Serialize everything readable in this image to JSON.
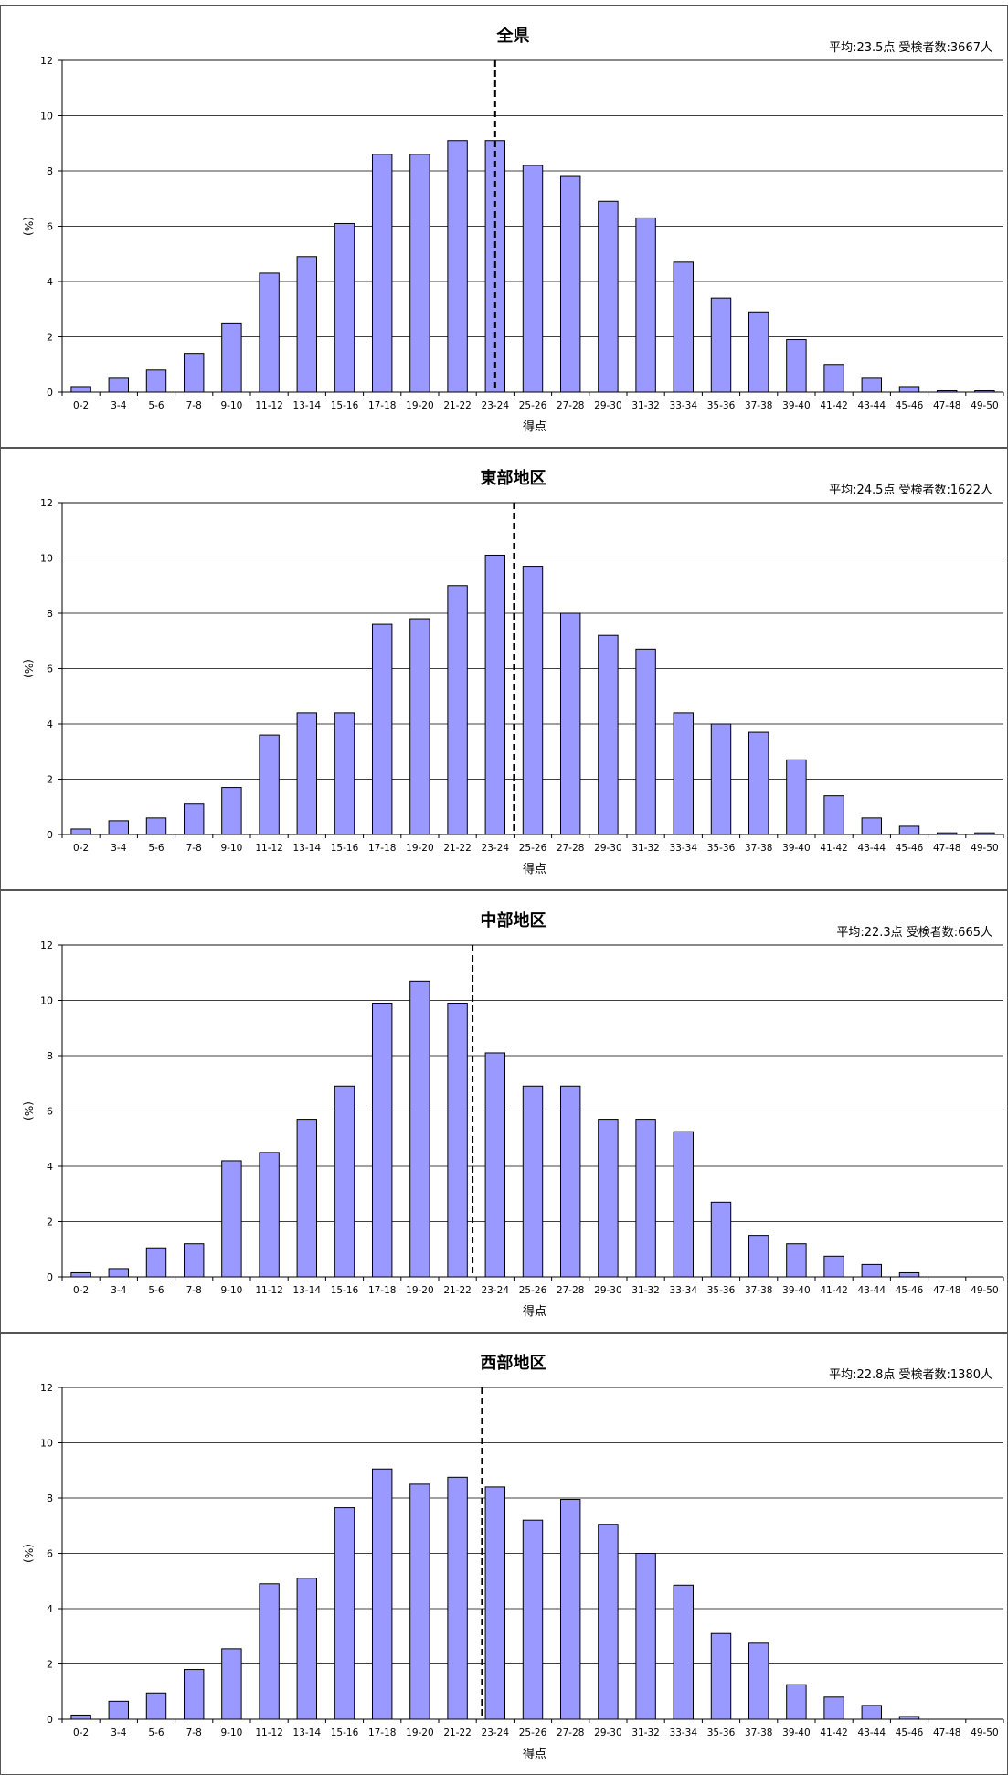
{
  "chart_data": [
    {
      "type": "bar",
      "title": "全県",
      "summary": "平均:23.5点 受検者数:3667人",
      "xlabel": "得点",
      "ylabel": "(%)",
      "ylim": [
        0,
        12
      ],
      "yticks": [
        0,
        2,
        4,
        6,
        8,
        10,
        12
      ],
      "grid": true,
      "categories": [
        "0-2",
        "3-4",
        "5-6",
        "7-8",
        "9-10",
        "11-12",
        "13-14",
        "15-16",
        "17-18",
        "19-20",
        "21-22",
        "23-24",
        "25-26",
        "27-28",
        "29-30",
        "31-32",
        "33-34",
        "35-36",
        "37-38",
        "39-40",
        "41-42",
        "43-44",
        "45-46",
        "47-48",
        "49-50"
      ],
      "values": [
        0.2,
        0.5,
        0.8,
        1.4,
        2.5,
        4.3,
        4.9,
        6.1,
        8.6,
        8.6,
        9.1,
        9.1,
        8.2,
        7.8,
        6.9,
        6.3,
        4.7,
        3.4,
        2.9,
        1.9,
        1.0,
        0.5,
        0.2,
        0.05,
        0.05
      ],
      "mean": 23.5,
      "bar_color": "#9999ff"
    },
    {
      "type": "bar",
      "title": "東部地区",
      "summary": "平均:24.5点 受検者数:1622人",
      "xlabel": "得点",
      "ylabel": "(%)",
      "ylim": [
        0,
        12
      ],
      "yticks": [
        0,
        2,
        4,
        6,
        8,
        10,
        12
      ],
      "grid": true,
      "categories": [
        "0-2",
        "3-4",
        "5-6",
        "7-8",
        "9-10",
        "11-12",
        "13-14",
        "15-16",
        "17-18",
        "19-20",
        "21-22",
        "23-24",
        "25-26",
        "27-28",
        "29-30",
        "31-32",
        "33-34",
        "35-36",
        "37-38",
        "39-40",
        "41-42",
        "43-44",
        "45-46",
        "47-48",
        "49-50"
      ],
      "values": [
        0.2,
        0.5,
        0.6,
        1.1,
        1.7,
        3.6,
        4.4,
        4.4,
        7.6,
        7.8,
        9.0,
        10.1,
        9.7,
        8.0,
        7.2,
        6.7,
        4.4,
        4.0,
        3.7,
        2.7,
        1.4,
        0.6,
        0.3,
        0.06,
        0.06
      ],
      "mean": 24.5,
      "bar_color": "#9999ff"
    },
    {
      "type": "bar",
      "title": "中部地区",
      "summary": "平均:22.3点 受検者数:665人",
      "xlabel": "得点",
      "ylabel": "(%)",
      "ylim": [
        0,
        12
      ],
      "yticks": [
        0,
        2,
        4,
        6,
        8,
        10,
        12
      ],
      "grid": true,
      "categories": [
        "0-2",
        "3-4",
        "5-6",
        "7-8",
        "9-10",
        "11-12",
        "13-14",
        "15-16",
        "17-18",
        "19-20",
        "21-22",
        "23-24",
        "25-26",
        "27-28",
        "29-30",
        "31-32",
        "33-34",
        "35-36",
        "37-38",
        "39-40",
        "41-42",
        "43-44",
        "45-46",
        "47-48",
        "49-50"
      ],
      "values": [
        0.15,
        0.3,
        1.05,
        1.2,
        4.2,
        4.5,
        5.7,
        6.9,
        9.9,
        10.7,
        9.9,
        8.1,
        6.9,
        6.9,
        5.7,
        5.7,
        5.25,
        2.7,
        1.5,
        1.2,
        0.75,
        0.45,
        0.15,
        0,
        0
      ],
      "mean": 22.3,
      "bar_color": "#9999ff"
    },
    {
      "type": "bar",
      "title": "西部地区",
      "summary": "平均:22.8点 受検者数:1380人",
      "xlabel": "得点",
      "ylabel": "(%)",
      "ylim": [
        0,
        12
      ],
      "yticks": [
        0,
        2,
        4,
        6,
        8,
        10,
        12
      ],
      "grid": true,
      "categories": [
        "0-2",
        "3-4",
        "5-6",
        "7-8",
        "9-10",
        "11-12",
        "13-14",
        "15-16",
        "17-18",
        "19-20",
        "21-22",
        "23-24",
        "25-26",
        "27-28",
        "29-30",
        "31-32",
        "33-34",
        "35-36",
        "37-38",
        "39-40",
        "41-42",
        "43-44",
        "45-46",
        "47-48",
        "49-50"
      ],
      "values": [
        0.15,
        0.65,
        0.95,
        1.8,
        2.55,
        4.9,
        5.1,
        7.65,
        9.05,
        8.5,
        8.75,
        8.4,
        7.2,
        7.95,
        7.05,
        6.0,
        4.85,
        3.1,
        2.75,
        1.25,
        0.8,
        0.5,
        0.1,
        0,
        0
      ],
      "mean": 22.8,
      "bar_color": "#9999ff"
    }
  ]
}
